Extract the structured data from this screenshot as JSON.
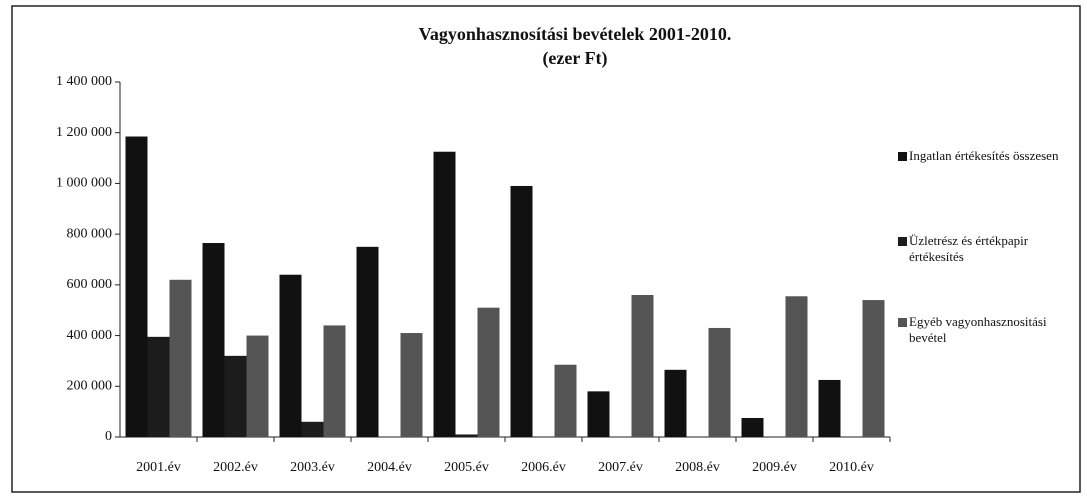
{
  "chart_data": {
    "type": "bar",
    "title": [
      "Vagyonhasznosítási bevételek 2001-2010.",
      "(ezer Ft)"
    ],
    "categories": [
      "2001.év",
      "2002.év",
      "2003.év",
      "2004.év",
      "2005.év",
      "2006.év",
      "2007.év",
      "2008.év",
      "2009.év",
      "2010.év"
    ],
    "series": [
      {
        "name": "Ingatlan értékesítés összesen",
        "color": "#111111",
        "values": [
          1185000,
          765000,
          640000,
          750000,
          1125000,
          990000,
          180000,
          265000,
          75000,
          225000
        ]
      },
      {
        "name": "Üzletrész és értékpapir értékesítés",
        "color": "#1c1c1c",
        "values": [
          395000,
          320000,
          60000,
          0,
          10000,
          0,
          0,
          0,
          0,
          0
        ]
      },
      {
        "name": "Egyéb vagyonhasznositási bevétel",
        "color": "#555555",
        "values": [
          620000,
          400000,
          440000,
          410000,
          510000,
          285000,
          560000,
          430000,
          555000,
          540000
        ]
      }
    ],
    "ylim": [
      0,
      1400000
    ],
    "yticks": [
      0,
      {
        "value": 200000,
        "label": "200 000"
      },
      {
        "value": 400000,
        "label": "400 000"
      },
      {
        "value": 600000,
        "label": "600 000"
      },
      {
        "value": 800000,
        "label": "800 000"
      },
      {
        "value": 1000000,
        "label": "1 000 000"
      },
      {
        "value": 1200000,
        "label": "1 200 000"
      },
      {
        "value": 1400000,
        "label": "1 400 000"
      }
    ],
    "legend": "right"
  }
}
